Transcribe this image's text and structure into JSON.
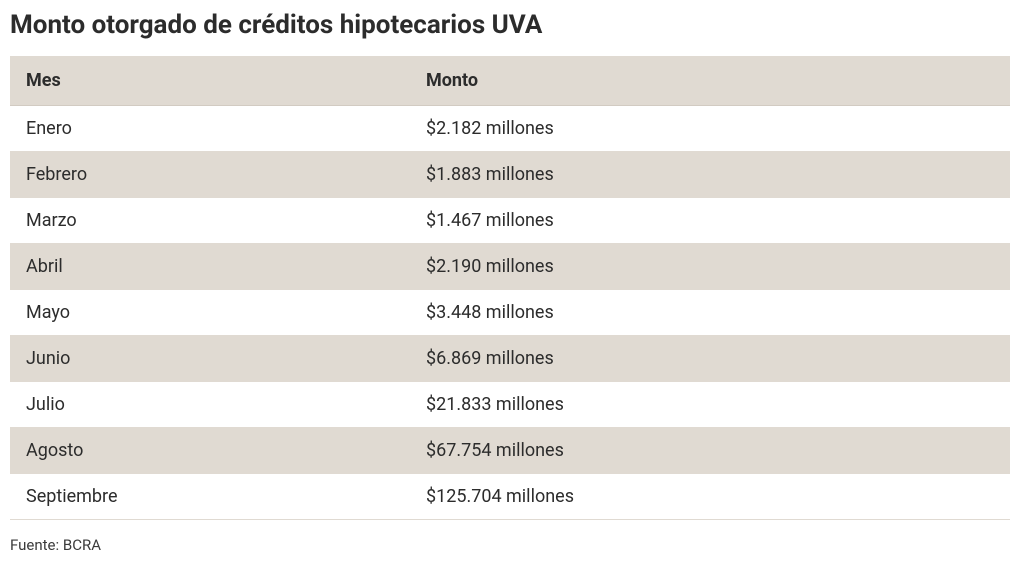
{
  "title": "Monto otorgado de créditos hipotecarios UVA",
  "table": {
    "columns": [
      "Mes",
      "Monto"
    ],
    "column_widths": [
      "40%",
      "60%"
    ],
    "header_bg": "#e0dad2",
    "row_even_bg": "#e0dad2",
    "row_odd_bg": "#ffffff",
    "border_color": "#e0dad2",
    "text_color": "#2c2c2c",
    "header_fontsize": 18,
    "cell_fontsize": 18,
    "rows": [
      {
        "mes": "Enero",
        "monto": "$2.182 millones"
      },
      {
        "mes": "Febrero",
        "monto": "$1.883 millones"
      },
      {
        "mes": "Marzo",
        "monto": "$1.467 millones"
      },
      {
        "mes": "Abril",
        "monto": "$2.190 millones"
      },
      {
        "mes": "Mayo",
        "monto": "$3.448 millones"
      },
      {
        "mes": "Junio",
        "monto": "$6.869 millones"
      },
      {
        "mes": "Julio",
        "monto": "$21.833 millones"
      },
      {
        "mes": "Agosto",
        "monto": "$67.754 millones"
      },
      {
        "mes": "Septiembre",
        "monto": "$125.704 millones"
      }
    ]
  },
  "source": "Fuente: BCRA",
  "title_fontsize": 26,
  "source_fontsize": 15
}
